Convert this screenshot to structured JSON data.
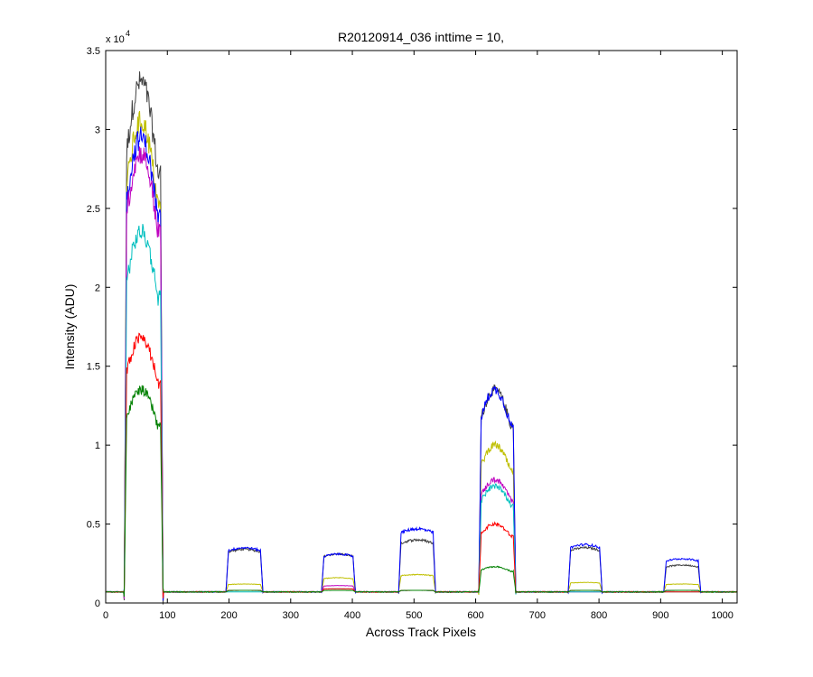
{
  "chart_data": {
    "type": "line",
    "title": "R20120914_036 inttime = 10,",
    "xlabel": "Across Track Pixels",
    "ylabel": "Intensity (ADU)",
    "xlim": [
      0,
      1024
    ],
    "ylim": [
      0,
      35000
    ],
    "y_exponent_label": "x 10",
    "y_exponent_power": "4",
    "x_ticks": [
      0,
      100,
      200,
      300,
      400,
      500,
      600,
      700,
      800,
      900,
      1000
    ],
    "x_tick_labels": [
      "0",
      "100",
      "200",
      "300",
      "400",
      "500",
      "600",
      "700",
      "800",
      "900",
      "1000"
    ],
    "y_ticks": [
      0,
      5000,
      10000,
      15000,
      20000,
      25000,
      30000,
      35000
    ],
    "y_tick_labels": [
      "0",
      "0.5",
      "1",
      "1.5",
      "2",
      "2.5",
      "3",
      "3.5"
    ],
    "grid": false,
    "legend": "none",
    "baseline": 700,
    "segments": [
      {
        "x0": 30,
        "x1": 93,
        "shape": "ramp"
      },
      {
        "x0": 195,
        "x1": 255,
        "shape": "flat"
      },
      {
        "x0": 350,
        "x1": 405,
        "shape": "flat"
      },
      {
        "x0": 475,
        "x1": 535,
        "shape": "flat"
      },
      {
        "x0": 605,
        "x1": 665,
        "shape": "ramp"
      },
      {
        "x0": 750,
        "x1": 805,
        "shape": "flat"
      },
      {
        "x0": 905,
        "x1": 965,
        "shape": "flat"
      }
    ],
    "series": [
      {
        "color": "#404040",
        "levels": [
          33000,
          3400,
          3100,
          4000,
          13500,
          3500,
          2400
        ]
      },
      {
        "color": "#bfbf00",
        "levels": [
          30500,
          1200,
          1600,
          1800,
          10000,
          1300,
          1200
        ]
      },
      {
        "color": "#0000ff",
        "levels": [
          29500,
          3500,
          3100,
          4700,
          13500,
          3700,
          2800
        ]
      },
      {
        "color": "#bf00bf",
        "levels": [
          28500,
          800,
          1100,
          800,
          7800,
          700,
          800
        ]
      },
      {
        "color": "#00bfbf",
        "levels": [
          23500,
          700,
          900,
          800,
          7400,
          700,
          700
        ]
      },
      {
        "color": "#ff0000",
        "levels": [
          16800,
          800,
          900,
          800,
          5000,
          800,
          700
        ]
      },
      {
        "color": "#008000",
        "levels": [
          13500,
          800,
          800,
          800,
          2300,
          800,
          800
        ]
      }
    ]
  }
}
